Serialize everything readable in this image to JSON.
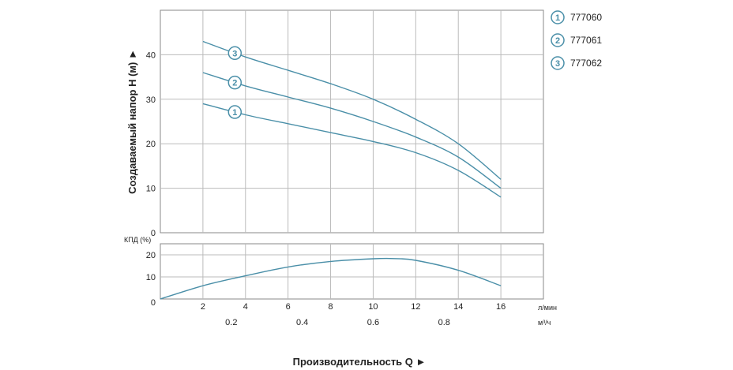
{
  "chart_data": [
    {
      "type": "line",
      "ylabel": "Создаваемый напор H (м) ►",
      "x_unit_label": "л/мин",
      "x_secondary_unit_label": "м³/ч",
      "xlabel": "Производительность Q ►",
      "xlim": [
        0,
        18
      ],
      "ylim": [
        0,
        50
      ],
      "x_ticks": [
        2,
        4,
        6,
        8,
        10,
        12,
        14,
        16
      ],
      "x_secondary_ticks": [
        0.2,
        0.4,
        0.6,
        0.8
      ],
      "y_ticks": [
        0,
        10,
        20,
        30,
        40
      ],
      "grid": true,
      "legend_position": "right",
      "colors": {
        "line": "#4a8fa8",
        "badge_fill": "#ffffff",
        "grid": "#bbbbbb"
      },
      "series": [
        {
          "name": "777060",
          "badge": "1",
          "x": [
            2,
            4,
            6,
            8,
            10,
            12,
            14,
            16
          ],
          "y": [
            29,
            26.5,
            24.5,
            22.5,
            20.5,
            18,
            14,
            8
          ]
        },
        {
          "name": "777061",
          "badge": "2",
          "x": [
            2,
            4,
            6,
            8,
            10,
            12,
            14,
            16
          ],
          "y": [
            36,
            33,
            30.5,
            28,
            25,
            21.5,
            17,
            10
          ]
        },
        {
          "name": "777062",
          "badge": "3",
          "x": [
            2,
            4,
            6,
            8,
            10,
            12,
            14,
            16
          ],
          "y": [
            43,
            39.5,
            36.5,
            33.5,
            30,
            25.5,
            20,
            12
          ]
        }
      ]
    },
    {
      "type": "line",
      "ylabel": "КПД (%)",
      "xlim": [
        0,
        18
      ],
      "ylim": [
        0,
        25
      ],
      "y_ticks": [
        0,
        10,
        20
      ],
      "grid": true,
      "series": [
        {
          "x": [
            0,
            2,
            4,
            6,
            8,
            10,
            11,
            12,
            14,
            16
          ],
          "y": [
            0,
            6,
            10.5,
            14.5,
            17,
            18.2,
            18.3,
            17.5,
            13,
            6
          ]
        }
      ]
    }
  ]
}
